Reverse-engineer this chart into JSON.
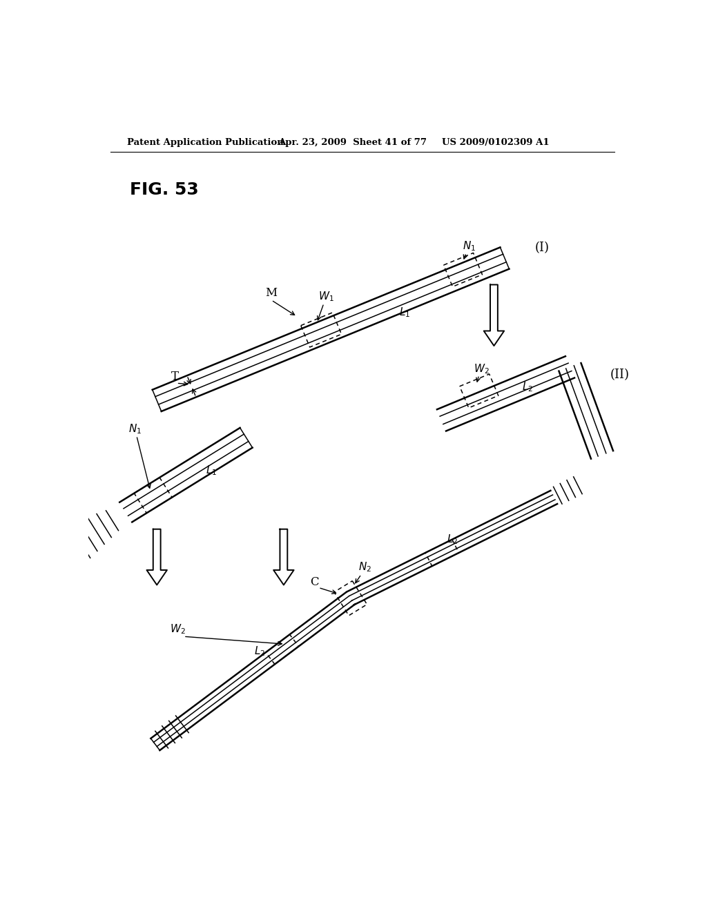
{
  "bg_color": "#ffffff",
  "header_left": "Patent Application Publication",
  "header_mid": "Apr. 23, 2009  Sheet 41 of 77",
  "header_right": "US 2009/0102309 A1",
  "fig_label": "FIG. 53",
  "label_I": "(I)",
  "label_II": "(II)"
}
